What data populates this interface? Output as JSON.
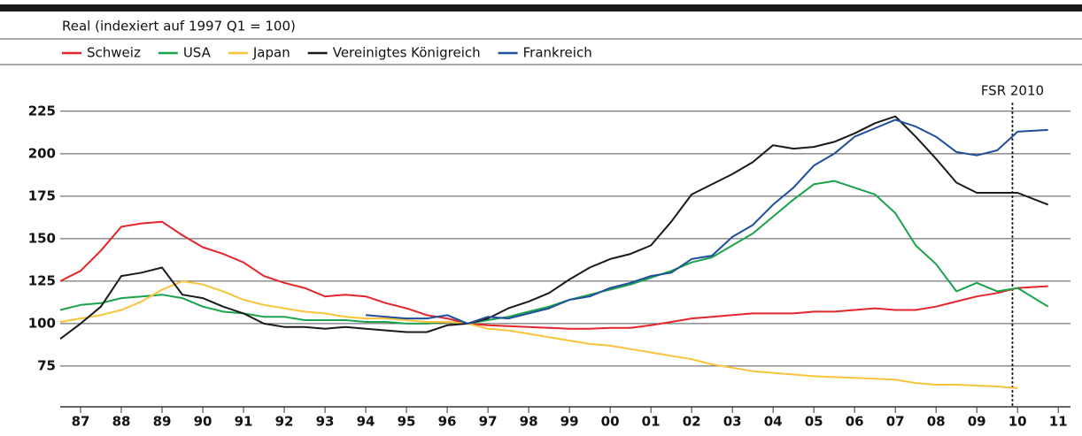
{
  "chart_data": {
    "type": "line",
    "subtitle": "Real (indexiert auf 1997 Q1 = 100)",
    "x": [
      1987.0,
      1987.5,
      1988.0,
      1988.5,
      1989.0,
      1989.5,
      1990.0,
      1990.5,
      1991.0,
      1991.5,
      1992.0,
      1992.5,
      1993.0,
      1993.5,
      1994.0,
      1994.5,
      1995.0,
      1995.5,
      1996.0,
      1996.5,
      1997.0,
      1997.5,
      1998.0,
      1998.5,
      1999.0,
      1999.5,
      2000.0,
      2000.5,
      2001.0,
      2001.5,
      2002.0,
      2002.5,
      2003.0,
      2003.5,
      2004.0,
      2004.5,
      2005.0,
      2005.5,
      2006.0,
      2006.5,
      2007.0,
      2007.5,
      2008.0,
      2008.5,
      2009.0,
      2009.5,
      2010.0,
      2010.5,
      2011.25
    ],
    "series": [
      {
        "name": "Schweiz",
        "color": "#e3262b",
        "values": [
          125,
          131,
          143,
          157,
          159,
          160,
          152,
          145,
          141,
          136,
          128,
          124,
          121,
          116,
          117,
          116,
          112,
          109,
          105,
          103,
          100,
          99,
          98.5,
          98,
          97.5,
          97,
          97,
          97.5,
          97.5,
          99,
          101,
          103,
          104,
          105,
          106,
          106,
          106,
          107,
          107,
          108,
          109,
          108,
          108,
          110,
          113,
          116,
          118,
          121,
          122
        ]
      },
      {
        "name": "USA",
        "color": "#1aa34a",
        "values": [
          108,
          111,
          112,
          115,
          116,
          117,
          115,
          110,
          107,
          106,
          104,
          104,
          102,
          102,
          102,
          101,
          101,
          100,
          100,
          101,
          100,
          102,
          104,
          107,
          110,
          114,
          117,
          120,
          123,
          127,
          131,
          136,
          139,
          146,
          153,
          163,
          173,
          182,
          184,
          180,
          176,
          165,
          146,
          135,
          119,
          124,
          119,
          121,
          110
        ]
      },
      {
        "name": "Japan",
        "color": "#f9c33a",
        "values": [
          101,
          103,
          105,
          108,
          113,
          120,
          125,
          123,
          119,
          114,
          111,
          109,
          107,
          106,
          104,
          103,
          103,
          102,
          101,
          101,
          100,
          97,
          96,
          94,
          92,
          90,
          88,
          87,
          85,
          83,
          81,
          79,
          76,
          74,
          72,
          71,
          70,
          69,
          68.5,
          68,
          67.5,
          67,
          65,
          64,
          64,
          63.5,
          63,
          62,
          null
        ]
      },
      {
        "name": "Vereinigtes Königreich",
        "color": "#1a1a1a",
        "values": [
          91,
          100,
          110,
          128,
          130,
          133,
          117,
          115,
          110,
          106,
          100,
          98,
          98,
          97,
          98,
          97,
          96,
          95,
          95,
          99,
          100,
          103,
          109,
          113,
          118,
          126,
          133,
          138,
          141,
          146,
          160,
          176,
          182,
          188,
          195,
          205,
          203,
          204,
          207,
          212,
          218,
          222,
          210,
          197,
          183,
          177,
          177,
          177,
          170
        ]
      },
      {
        "name": "Frankreich",
        "color": "#1f4e9c",
        "values": [
          null,
          null,
          null,
          null,
          null,
          null,
          null,
          null,
          null,
          null,
          null,
          null,
          null,
          null,
          null,
          105,
          104,
          103,
          103,
          105,
          100,
          104,
          103,
          106,
          109,
          114,
          116,
          121,
          124,
          128,
          130,
          138,
          140,
          151,
          158,
          170,
          180,
          193,
          200,
          210,
          215,
          220,
          216,
          210,
          201,
          199,
          202,
          213,
          214
        ]
      }
    ],
    "xlim": [
      1987,
      2011.8
    ],
    "xticks": [
      {
        "value": 1987.5,
        "label": "87"
      },
      {
        "value": 1988.5,
        "label": "88"
      },
      {
        "value": 1989.5,
        "label": "89"
      },
      {
        "value": 1990.5,
        "label": "90"
      },
      {
        "value": 1991.5,
        "label": "91"
      },
      {
        "value": 1992.5,
        "label": "92"
      },
      {
        "value": 1993.5,
        "label": "93"
      },
      {
        "value": 1994.5,
        "label": "94"
      },
      {
        "value": 1995.5,
        "label": "95"
      },
      {
        "value": 1996.5,
        "label": "96"
      },
      {
        "value": 1997.5,
        "label": "97"
      },
      {
        "value": 1998.5,
        "label": "98"
      },
      {
        "value": 1999.5,
        "label": "99"
      },
      {
        "value": 2000.5,
        "label": "00"
      },
      {
        "value": 2001.5,
        "label": "01"
      },
      {
        "value": 2002.5,
        "label": "02"
      },
      {
        "value": 2003.5,
        "label": "03"
      },
      {
        "value": 2004.5,
        "label": "04"
      },
      {
        "value": 2005.5,
        "label": "05"
      },
      {
        "value": 2006.5,
        "label": "06"
      },
      {
        "value": 2007.5,
        "label": "07"
      },
      {
        "value": 2008.5,
        "label": "08"
      },
      {
        "value": 2009.5,
        "label": "09"
      },
      {
        "value": 2010.5,
        "label": "10"
      },
      {
        "value": 2011.5,
        "label": "11"
      }
    ],
    "ylim": [
      51,
      240
    ],
    "yticks": [
      75,
      100,
      125,
      150,
      175,
      200,
      225
    ],
    "grid": true,
    "annotations": [
      {
        "label": "FSR 2010",
        "x": 2010.375
      }
    ]
  }
}
